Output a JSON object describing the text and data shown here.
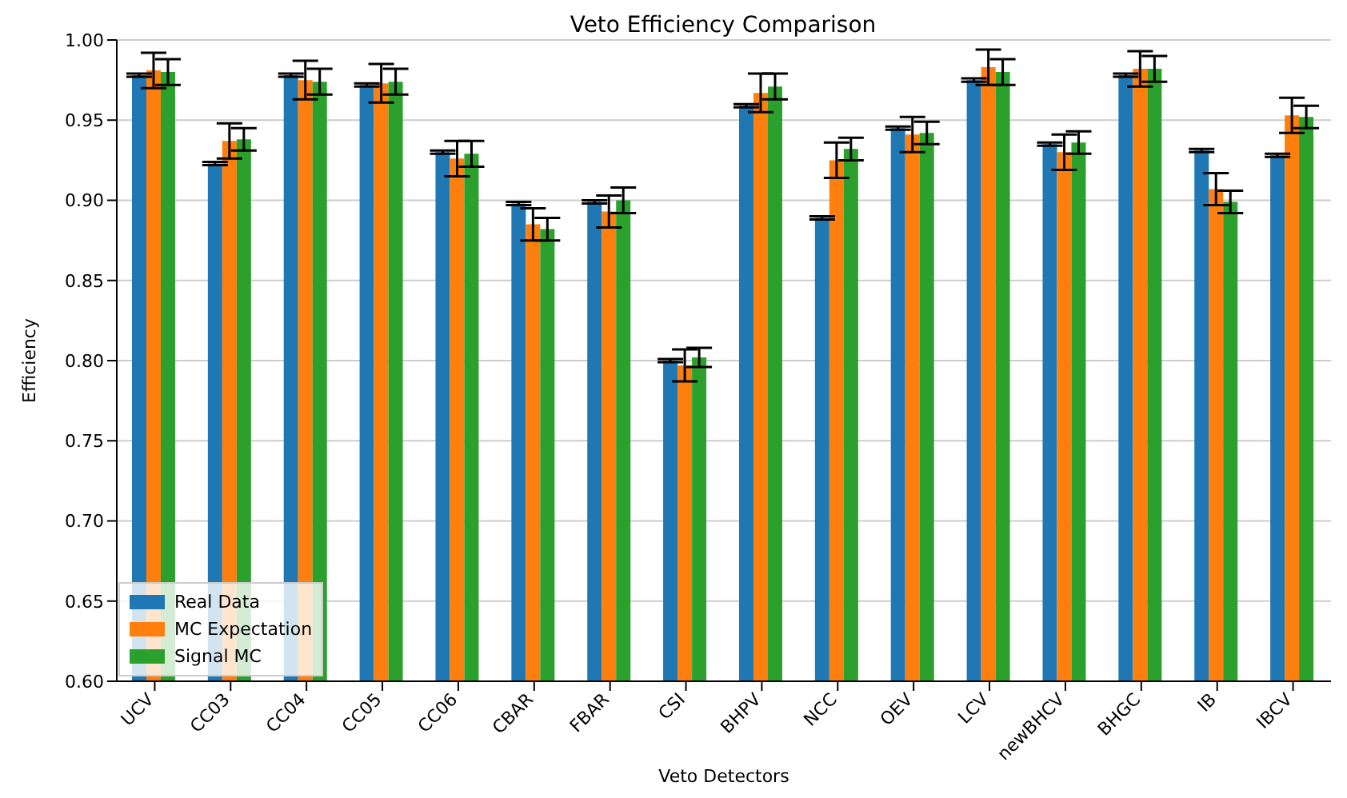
{
  "chart_data": {
    "type": "bar",
    "title": "Veto Efficiency Comparison",
    "xlabel": "Veto Detectors",
    "ylabel": "Efficiency",
    "categories": [
      "UCV",
      "CC03",
      "CC04",
      "CC05",
      "CC06",
      "CBAR",
      "FBAR",
      "CSI",
      "BHPV",
      "NCC",
      "OEV",
      "LCV",
      "newBHCV",
      "BHGC",
      "IB",
      "IBCV"
    ],
    "series": [
      {
        "name": "Real Data",
        "color": "#1f77b4",
        "values": [
          0.978,
          0.923,
          0.978,
          0.972,
          0.93,
          0.898,
          0.899,
          0.8,
          0.959,
          0.889,
          0.945,
          0.975,
          0.935,
          0.978,
          0.931,
          0.928
        ],
        "errors": [
          0.001,
          0.001,
          0.001,
          0.001,
          0.001,
          0.001,
          0.001,
          0.001,
          0.001,
          0.001,
          0.001,
          0.001,
          0.001,
          0.001,
          0.001,
          0.001
        ]
      },
      {
        "name": "MC Expectation",
        "color": "#ff7f0e",
        "values": [
          0.981,
          0.937,
          0.975,
          0.973,
          0.926,
          0.885,
          0.893,
          0.797,
          0.967,
          0.925,
          0.941,
          0.983,
          0.93,
          0.982,
          0.907,
          0.953
        ],
        "errors": [
          0.011,
          0.011,
          0.012,
          0.012,
          0.011,
          0.01,
          0.01,
          0.01,
          0.012,
          0.011,
          0.011,
          0.011,
          0.011,
          0.011,
          0.01,
          0.011
        ]
      },
      {
        "name": "Signal MC",
        "color": "#2ca02c",
        "values": [
          0.98,
          0.938,
          0.974,
          0.974,
          0.929,
          0.882,
          0.9,
          0.802,
          0.971,
          0.932,
          0.942,
          0.98,
          0.936,
          0.982,
          0.899,
          0.952
        ],
        "errors": [
          0.008,
          0.007,
          0.008,
          0.008,
          0.008,
          0.007,
          0.008,
          0.006,
          0.008,
          0.007,
          0.007,
          0.008,
          0.007,
          0.008,
          0.007,
          0.007
        ]
      }
    ],
    "ylim": [
      0.6,
      1.0
    ],
    "yticks": [
      {
        "value": 0.6,
        "label": "0.60"
      },
      {
        "value": 0.65,
        "label": "0.65"
      },
      {
        "value": 0.7,
        "label": "0.70"
      },
      {
        "value": 0.75,
        "label": "0.75"
      },
      {
        "value": 0.8,
        "label": "0.80"
      },
      {
        "value": 0.85,
        "label": "0.85"
      },
      {
        "value": 0.9,
        "label": "0.90"
      },
      {
        "value": 0.95,
        "label": "0.95"
      },
      {
        "value": 1.0,
        "label": "1.00"
      }
    ],
    "grid": "y",
    "legend": "bottom left"
  }
}
